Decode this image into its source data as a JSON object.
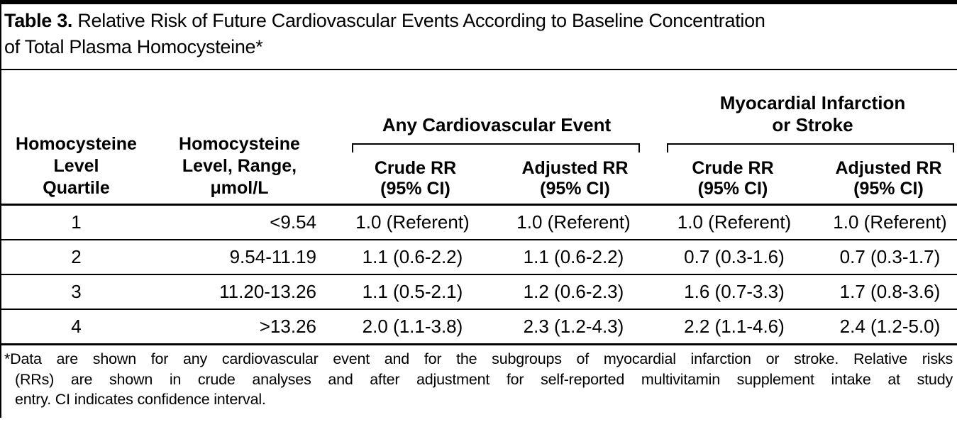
{
  "colors": {
    "ink": "#000000",
    "background": "#ffffff"
  },
  "caption": {
    "number": "Table 3.",
    "text": "Relative Risk of Future Cardiovascular Events According to Baseline Concentration\nof Total Plasma Homocysteine*"
  },
  "table": {
    "column_headers": {
      "quartile": "Homocysteine\nLevel\nQuartile",
      "range": "Homocysteine\nLevel, Range,\nμmol/L"
    },
    "groups": [
      {
        "title": "Any Cardiovascular Event",
        "sub": [
          "Crude RR\n(95% CI)",
          "Adjusted RR\n(95% CI)"
        ]
      },
      {
        "title": "Myocardial Infarction\nor Stroke",
        "sub": [
          "Crude RR\n(95% CI)",
          "Adjusted RR\n(95% CI)"
        ]
      }
    ],
    "rows": [
      {
        "cells": [
          "1",
          "<9.54",
          "1.0 (Referent)",
          "1.0 (Referent)",
          "1.0 (Referent)",
          "1.0 (Referent)"
        ]
      },
      {
        "cells": [
          "2",
          "9.54-11.19",
          "1.1 (0.6-2.2)",
          "1.1 (0.6-2.2)",
          "0.7 (0.3-1.6)",
          "0.7 (0.3-1.7)"
        ]
      },
      {
        "cells": [
          "3",
          "11.20-13.26",
          "1.1 (0.5-2.1)",
          "1.2 (0.6-2.3)",
          "1.6 (0.7-3.3)",
          "1.7 (0.8-3.6)"
        ]
      },
      {
        "cells": [
          "4",
          ">13.26",
          "2.0 (1.1-3.8)",
          "2.3 (1.2-4.3)",
          "2.2 (1.1-4.6)",
          "2.4 (1.2-5.0)"
        ]
      }
    ]
  },
  "footnote": {
    "lines": [
      "*Data are shown for any cardiovascular event and for the subgroups of myocardial infarction or stroke. Relative risks",
      "(RRs) are shown in crude analyses and after adjustment for self-reported multivitamin supplement intake at study",
      "entry. CI indicates confidence interval."
    ]
  }
}
